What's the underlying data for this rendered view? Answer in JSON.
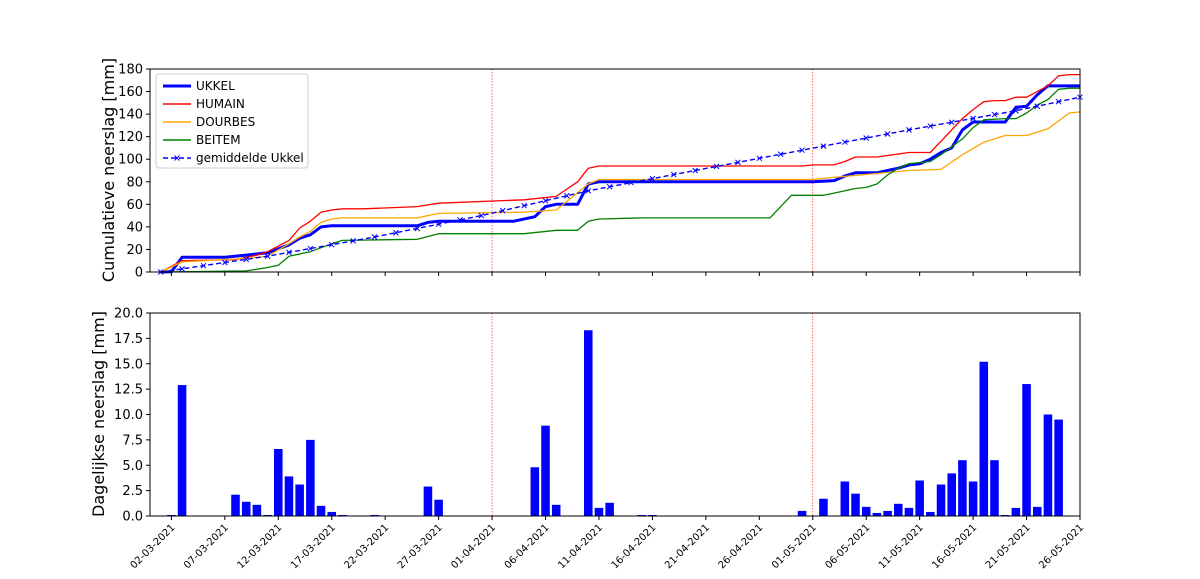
{
  "chart_data": [
    {
      "type": "line",
      "ylabel": "Cumulatieve neerslag [mm]",
      "xlim": [
        "2021-02-28",
        "2021-05-26"
      ],
      "ylim": [
        0,
        180
      ],
      "yticks": [
        0,
        20,
        40,
        60,
        80,
        100,
        120,
        140,
        160,
        180
      ],
      "legend_position": "top-left",
      "vlines": [
        "2021-04-01",
        "2021-05-01"
      ],
      "series": [
        {
          "name": "UKKEL",
          "color": "#0000ff",
          "x": [
            "2021-03-01",
            "2021-03-02",
            "2021-03-03",
            "2021-03-07",
            "2021-03-09",
            "2021-03-11",
            "2021-03-13",
            "2021-03-14",
            "2021-03-15",
            "2021-03-16",
            "2021-03-17",
            "2021-03-20",
            "2021-03-25",
            "2021-03-26",
            "2021-03-27",
            "2021-04-03",
            "2021-04-05",
            "2021-04-06",
            "2021-04-07",
            "2021-04-09",
            "2021-04-10",
            "2021-04-11",
            "2021-04-30",
            "2021-05-01",
            "2021-05-03",
            "2021-05-04",
            "2021-05-05",
            "2021-05-06",
            "2021-05-07",
            "2021-05-08",
            "2021-05-09",
            "2021-05-10",
            "2021-05-11",
            "2021-05-12",
            "2021-05-13",
            "2021-05-14",
            "2021-05-15",
            "2021-05-16",
            "2021-05-17",
            "2021-05-18",
            "2021-05-19",
            "2021-05-20",
            "2021-05-21",
            "2021-05-22",
            "2021-05-23",
            "2021-05-24",
            "2021-05-25",
            "2021-05-26"
          ],
          "y": [
            0,
            0.3,
            13,
            13,
            15,
            17,
            24,
            30,
            33,
            40,
            41,
            41,
            41,
            44,
            45,
            45,
            49,
            58,
            60,
            60,
            78,
            80,
            80,
            80,
            81,
            85,
            88,
            88,
            88,
            90,
            92,
            95,
            96,
            100,
            106,
            110,
            126,
            133,
            133,
            133,
            133,
            146,
            147,
            157,
            165,
            165,
            165,
            165
          ]
        },
        {
          "name": "HUMAIN",
          "color": "#ff0000",
          "x": [
            "2021-03-01",
            "2021-03-03",
            "2021-03-08",
            "2021-03-10",
            "2021-03-11",
            "2021-03-13",
            "2021-03-14",
            "2021-03-15",
            "2021-03-16",
            "2021-03-17",
            "2021-03-18",
            "2021-03-20",
            "2021-03-25",
            "2021-03-27",
            "2021-04-04",
            "2021-04-05",
            "2021-04-07",
            "2021-04-09",
            "2021-04-10",
            "2021-04-11",
            "2021-04-30",
            "2021-05-01",
            "2021-05-03",
            "2021-05-04",
            "2021-05-05",
            "2021-05-06",
            "2021-05-07",
            "2021-05-10",
            "2021-05-12",
            "2021-05-15",
            "2021-05-16",
            "2021-05-17",
            "2021-05-18",
            "2021-05-19",
            "2021-05-20",
            "2021-05-21",
            "2021-05-22",
            "2021-05-23",
            "2021-05-24",
            "2021-05-25",
            "2021-05-26"
          ],
          "y": [
            0,
            10,
            11,
            15,
            18,
            28,
            39,
            45,
            53,
            55,
            56,
            56,
            58,
            61,
            64,
            65,
            67,
            80,
            92,
            94,
            94,
            95,
            95,
            98,
            102,
            102,
            102,
            106,
            106,
            136,
            144,
            151,
            152,
            152,
            155,
            155,
            160,
            165,
            174,
            175,
            175
          ]
        },
        {
          "name": "DOURBES",
          "color": "#ffa500",
          "x": [
            "2021-03-01",
            "2021-03-03",
            "2021-03-09",
            "2021-03-11",
            "2021-03-13",
            "2021-03-14",
            "2021-03-15",
            "2021-03-16",
            "2021-03-17",
            "2021-03-18",
            "2021-03-20",
            "2021-03-25",
            "2021-03-27",
            "2021-04-04",
            "2021-04-07",
            "2021-04-10",
            "2021-04-11",
            "2021-04-30",
            "2021-05-01",
            "2021-05-02",
            "2021-05-10",
            "2021-05-13",
            "2021-05-15",
            "2021-05-17",
            "2021-05-19",
            "2021-05-20",
            "2021-05-21",
            "2021-05-23",
            "2021-05-25",
            "2021-05-26"
          ],
          "y": [
            0,
            9,
            12,
            14,
            25,
            31,
            36,
            44,
            47,
            48,
            48,
            48,
            52,
            53,
            55,
            78,
            82,
            82,
            82,
            83,
            90,
            91,
            104,
            115,
            121,
            121,
            121,
            127,
            141,
            142
          ]
        },
        {
          "name": "BEITEM",
          "color": "#008000",
          "x": [
            "2021-03-01",
            "2021-03-09",
            "2021-03-11",
            "2021-03-12",
            "2021-03-13",
            "2021-03-15",
            "2021-03-17",
            "2021-03-18",
            "2021-03-25",
            "2021-03-27",
            "2021-04-04",
            "2021-04-07",
            "2021-04-08",
            "2021-04-09",
            "2021-04-10",
            "2021-04-11",
            "2021-04-15",
            "2021-04-27",
            "2021-04-28",
            "2021-04-29",
            "2021-05-02",
            "2021-05-03",
            "2021-05-04",
            "2021-05-05",
            "2021-05-06",
            "2021-05-07",
            "2021-05-08",
            "2021-05-09",
            "2021-05-10",
            "2021-05-12",
            "2021-05-13",
            "2021-05-15",
            "2021-05-16",
            "2021-05-17",
            "2021-05-19",
            "2021-05-20",
            "2021-05-21",
            "2021-05-22",
            "2021-05-23",
            "2021-05-24",
            "2021-05-25",
            "2021-05-26"
          ],
          "y": [
            0,
            1,
            4,
            6,
            14,
            18,
            25,
            28,
            29,
            34,
            34,
            37,
            37,
            37,
            45,
            47,
            48,
            48,
            58,
            68,
            68,
            70,
            72,
            74,
            75,
            78,
            86,
            92,
            96,
            98,
            104,
            118,
            128,
            135,
            136,
            136,
            141,
            148,
            153,
            162,
            163,
            163
          ]
        },
        {
          "name": "gemiddelde Ukkel",
          "color": "#0000ff",
          "dashed": true,
          "marker": "x",
          "x": [
            "2021-03-01",
            "2021-03-11",
            "2021-03-21",
            "2021-03-31",
            "2021-04-10",
            "2021-04-20",
            "2021-04-30",
            "2021-05-10",
            "2021-05-20",
            "2021-05-26"
          ],
          "y": [
            0,
            14,
            31,
            50,
            72,
            90,
            108,
            126,
            143,
            155
          ]
        }
      ]
    },
    {
      "type": "bar",
      "ylabel": "Dagelijkse neerslag [mm]",
      "xlim": [
        "2021-02-28",
        "2021-05-26"
      ],
      "ylim": [
        0,
        20
      ],
      "yticks": [
        "0.0",
        "2.5",
        "5.0",
        "7.5",
        "10.0",
        "12.5",
        "15.0",
        "17.5",
        "20.0"
      ],
      "vlines": [
        "2021-04-01",
        "2021-05-01"
      ],
      "xtick_labels": [
        "02-03-2021",
        "07-03-2021",
        "12-03-2021",
        "17-03-2021",
        "22-03-2021",
        "27-03-2021",
        "01-04-2021",
        "06-04-2021",
        "11-04-2021",
        "16-04-2021",
        "21-04-2021",
        "26-04-2021",
        "01-05-2021",
        "06-05-2021",
        "11-05-2021",
        "16-05-2021",
        "21-05-2021",
        "26-05-2021"
      ],
      "xtick_dates": [
        "2021-03-02",
        "2021-03-07",
        "2021-03-12",
        "2021-03-17",
        "2021-03-22",
        "2021-03-27",
        "2021-04-01",
        "2021-04-06",
        "2021-04-11",
        "2021-04-16",
        "2021-04-21",
        "2021-04-26",
        "2021-05-01",
        "2021-05-06",
        "2021-05-11",
        "2021-05-16",
        "2021-05-21",
        "2021-05-26"
      ],
      "color": "#0000ff",
      "x": [
        "2021-03-02",
        "2021-03-03",
        "2021-03-08",
        "2021-03-09",
        "2021-03-10",
        "2021-03-11",
        "2021-03-12",
        "2021-03-13",
        "2021-03-14",
        "2021-03-15",
        "2021-03-16",
        "2021-03-17",
        "2021-03-18",
        "2021-03-21",
        "2021-03-26",
        "2021-03-27",
        "2021-04-05",
        "2021-04-06",
        "2021-04-07",
        "2021-04-10",
        "2021-04-11",
        "2021-04-12",
        "2021-04-15",
        "2021-04-16",
        "2021-04-30",
        "2021-05-02",
        "2021-05-04",
        "2021-05-05",
        "2021-05-06",
        "2021-05-07",
        "2021-05-08",
        "2021-05-09",
        "2021-05-10",
        "2021-05-11",
        "2021-05-12",
        "2021-05-13",
        "2021-05-14",
        "2021-05-15",
        "2021-05-16",
        "2021-05-17",
        "2021-05-18",
        "2021-05-19",
        "2021-05-20",
        "2021-05-21",
        "2021-05-22",
        "2021-05-23",
        "2021-05-24",
        "2021-05-25"
      ],
      "values": [
        0.1,
        12.9,
        2.1,
        1.4,
        1.1,
        0.1,
        6.6,
        3.9,
        3.1,
        7.5,
        1.0,
        0.4,
        0.1,
        0.1,
        2.9,
        1.6,
        4.8,
        8.9,
        1.1,
        18.3,
        0.8,
        1.3,
        0.1,
        0.1,
        0.5,
        1.7,
        3.4,
        2.2,
        0.9,
        0.3,
        0.5,
        1.2,
        0.8,
        3.5,
        0.4,
        3.1,
        4.2,
        5.5,
        3.4,
        15.2,
        5.5,
        0.1,
        0.8,
        13.0,
        0.9,
        10.0,
        9.5,
        0.0
      ]
    }
  ]
}
